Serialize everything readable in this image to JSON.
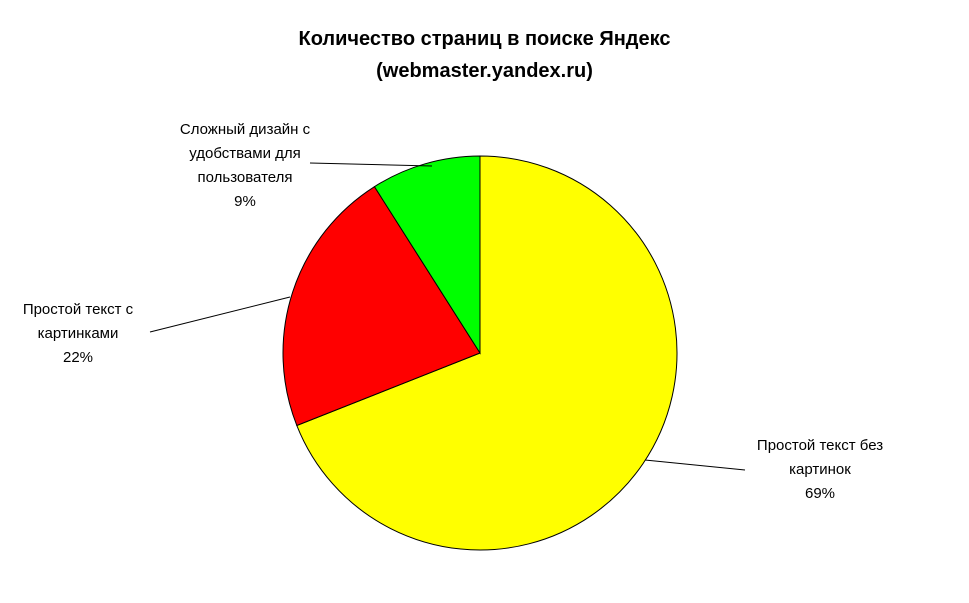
{
  "chart_data": {
    "type": "pie",
    "title": [
      "Количество страниц в поиске Яндекс",
      "(webmaster.yandex.ru)"
    ],
    "categories": [
      "Простой текст без картинок",
      "Простой текст с картинками",
      "Сложный дизайн с удобствами для пользователя"
    ],
    "values": [
      69,
      22,
      9
    ],
    "value_labels": [
      "69%",
      "22%",
      "9%"
    ],
    "colors": [
      "#ffff00",
      "#ff0000",
      "#00ff00"
    ]
  }
}
